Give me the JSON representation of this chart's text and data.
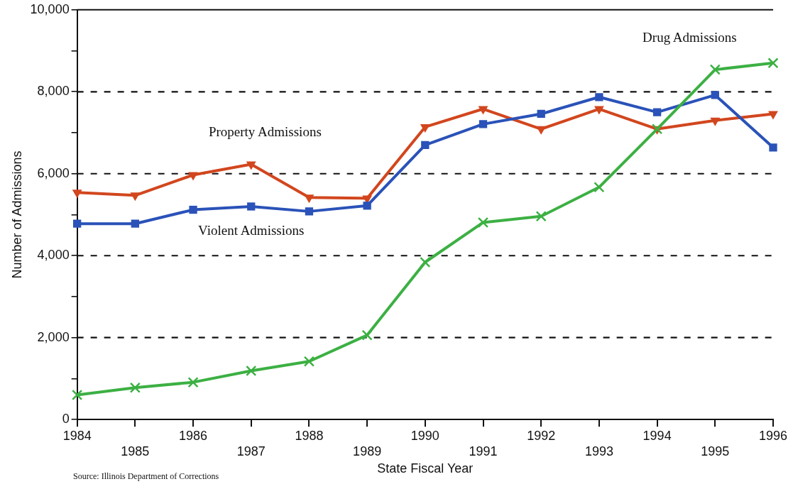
{
  "chart_data": {
    "type": "line",
    "xlabel": "State Fiscal Year",
    "ylabel": "Number of Admissions",
    "categories": [
      "1984",
      "1985",
      "1986",
      "1987",
      "1988",
      "1989",
      "1990",
      "1991",
      "1992",
      "1993",
      "1994",
      "1995",
      "1996"
    ],
    "series": [
      {
        "name": "Property Admissions",
        "color": "#d2461e",
        "marker": "triangle",
        "values": [
          5540,
          5470,
          5970,
          6230,
          5420,
          5400,
          7140,
          7580,
          7090,
          7580,
          7090,
          7300,
          7460
        ]
      },
      {
        "name": "Violent Admissions",
        "color": "#2a52b8",
        "marker": "square",
        "values": [
          4780,
          4780,
          5120,
          5200,
          5080,
          5220,
          6700,
          7210,
          7460,
          7870,
          7500,
          7920,
          6640
        ]
      },
      {
        "name": "Drug Admissions",
        "color": "#3cb043",
        "marker": "cross",
        "values": [
          600,
          780,
          910,
          1190,
          1420,
          2060,
          3840,
          4810,
          4960,
          5670,
          7090,
          8540,
          8700
        ]
      }
    ],
    "ylim": [
      0,
      10000
    ],
    "yticks": [
      0,
      {
        "value": 1000,
        "label": null
      },
      "2,000",
      {
        "value": 3000,
        "label": null
      },
      {
        "value": 4000,
        "label": "4,000"
      },
      {
        "value": 5000,
        "label": null
      },
      {
        "value": 6000,
        "label": "6,000"
      },
      {
        "value": 7000,
        "label": null
      },
      {
        "value": 8000,
        "label": "8,000"
      },
      {
        "value": 9000,
        "label": null
      },
      {
        "value": 10000,
        "label": "10,000"
      }
    ],
    "grid": "y",
    "line_style": "solid",
    "legend": false,
    "annotations": [
      "Source: Illinois Department of Corrections"
    ]
  }
}
